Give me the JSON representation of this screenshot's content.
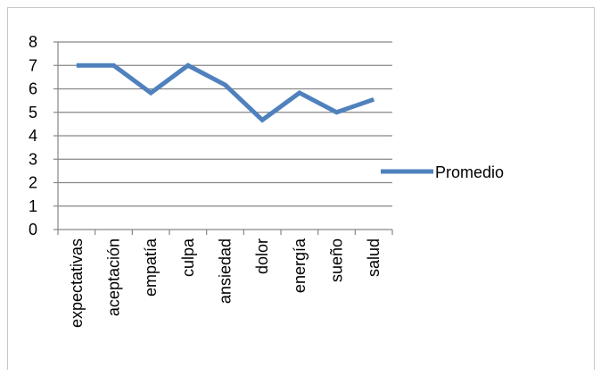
{
  "chart_data": {
    "type": "line",
    "title": "",
    "xlabel": "",
    "ylabel": "",
    "categories": [
      "expectativas",
      "aceptación",
      "empatía",
      "culpa",
      "ansiedad",
      "dolor",
      "energía",
      "sueño",
      "salud"
    ],
    "series": [
      {
        "name": "Promedio",
        "values": [
          7.0,
          7.0,
          5.83,
          7.0,
          6.17,
          4.67,
          5.83,
          5.0,
          5.55
        ],
        "color": "#4f81bd"
      }
    ],
    "yticks": [
      "0",
      "1",
      "2",
      "3",
      "4",
      "5",
      "6",
      "7",
      "8"
    ],
    "ylim": [
      0,
      8
    ],
    "grid": true,
    "legend_position": "right"
  }
}
